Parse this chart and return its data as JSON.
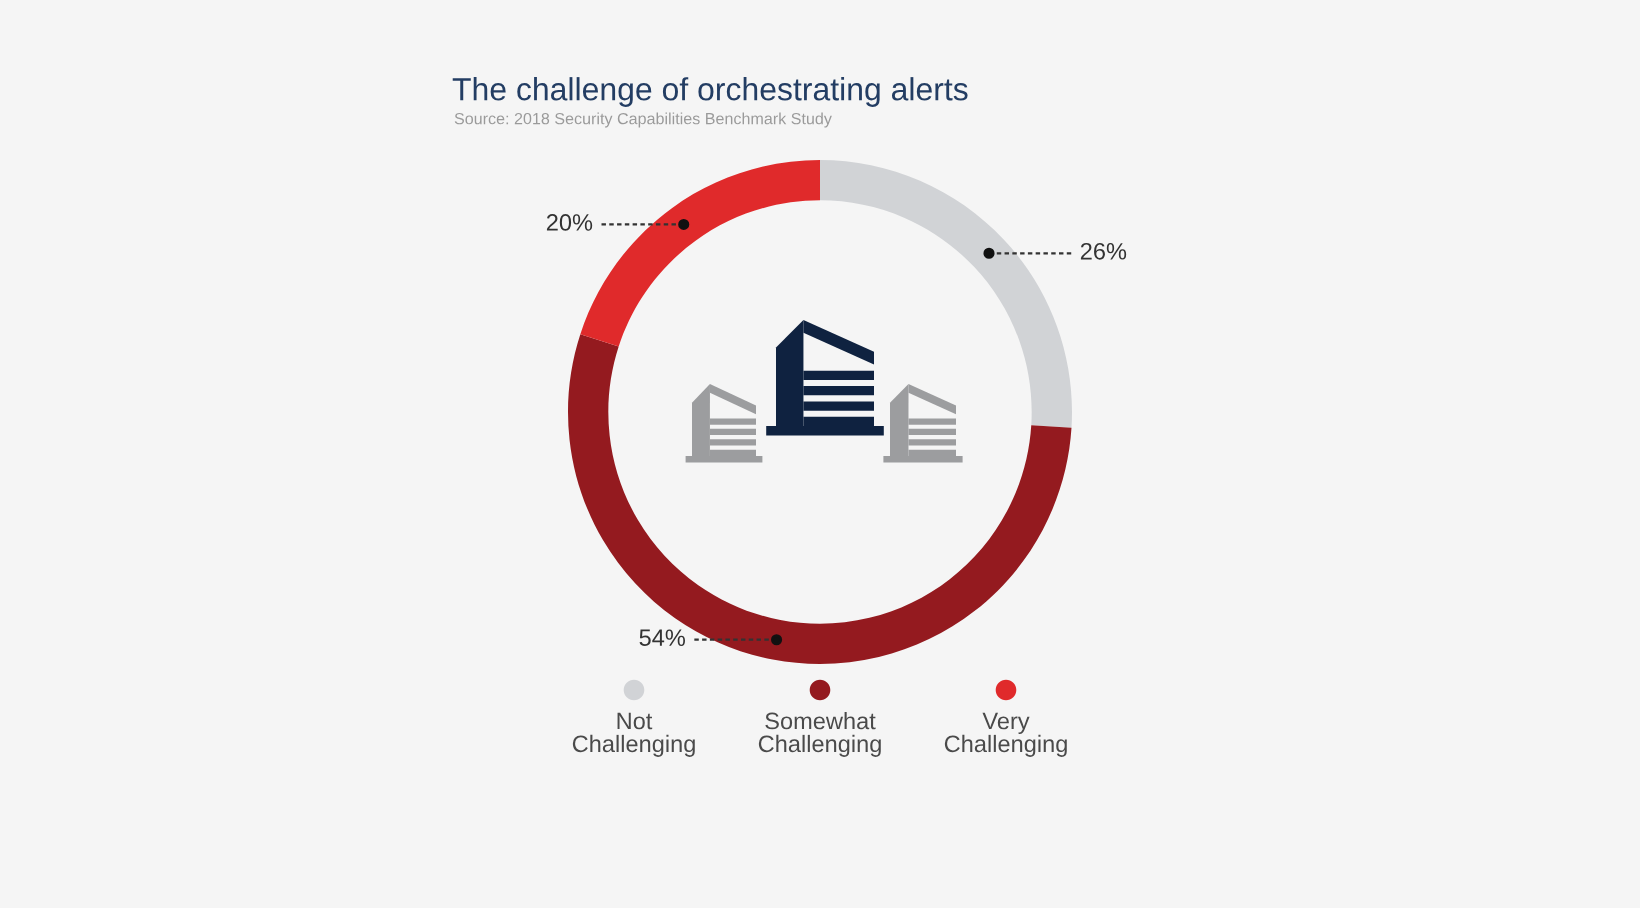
{
  "chart_data": {
    "type": "donut",
    "title": "The challenge of orchestrating alerts",
    "annotations": [
      "Source: 2018 Security Capabilities Benchmark Study"
    ],
    "categories": [
      "Not Challenging",
      "Somewhat Challenging",
      "Very Challenging"
    ],
    "values": [
      26,
      54,
      20
    ],
    "colors": [
      "#d1d3d6",
      "#941a1f",
      "#e02a2b"
    ],
    "value_labels": [
      "26%",
      "54%",
      "20%"
    ],
    "legend": "bottom"
  }
}
